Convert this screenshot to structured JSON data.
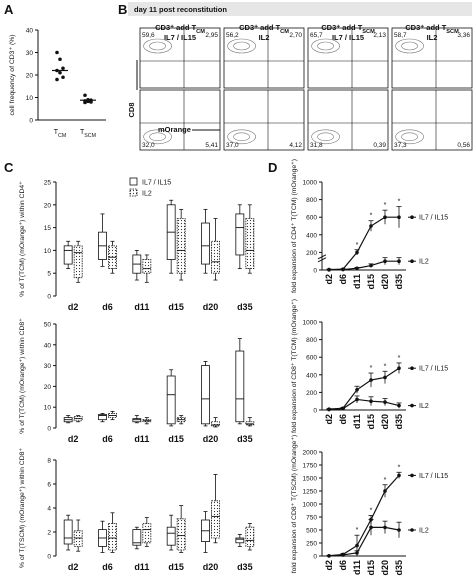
{
  "panels": {
    "A": "A",
    "B": "B",
    "C": "C",
    "D": "D"
  },
  "chart_data": [
    {
      "id": "A",
      "type": "scatter",
      "ylabel": "cell frequency of CD3⁺ (%)",
      "ylim": [
        0,
        40
      ],
      "yticks": [
        0,
        10,
        20,
        30,
        40
      ],
      "categories": [
        "T_CM",
        "T_SCM"
      ],
      "category_labels": [
        {
          "main": "T",
          "sub": "CM"
        },
        {
          "main": "T",
          "sub": "SCM"
        }
      ],
      "points": [
        {
          "cat": 0,
          "values": [
            30,
            27,
            23,
            22,
            21,
            19,
            18
          ]
        },
        {
          "cat": 1,
          "values": [
            11,
            9,
            8.8,
            8.5,
            8.3,
            8,
            7.8
          ]
        }
      ],
      "means": [
        22,
        8.8
      ]
    },
    {
      "id": "B",
      "type": "facs_grid",
      "title": "day 11 post reconstitution",
      "xlabel": "mOrange",
      "ylabel": "CD8",
      "columns": [
        {
          "line1": "CD3⁺ add T",
          "sub": "CM",
          "line2": "IL7 / IL15",
          "quadrants": {
            "ul": "59,6",
            "ur": "2,95",
            "ll": "32,0",
            "lr": "5,41"
          }
        },
        {
          "line1": "CD3⁺ add T",
          "sub": "CM",
          "line2": "IL2",
          "quadrants": {
            "ul": "56,2",
            "ur": "2,70",
            "ll": "37,0",
            "lr": "4,12"
          }
        },
        {
          "line1": "CD3⁺ add T",
          "sub": "SCM",
          "line2": "IL7 / IL15",
          "quadrants": {
            "ul": "65,7",
            "ur": "2,13",
            "ll": "31,8",
            "lr": "0,39"
          }
        },
        {
          "line1": "CD3⁺ add T",
          "sub": "SCM",
          "line2": "IL2",
          "quadrants": {
            "ul": "58,7",
            "ur": "3,36",
            "ll": "37,3",
            "lr": "0,56"
          }
        }
      ]
    },
    {
      "id": "C1",
      "type": "box",
      "ylabel": "% of T(TCM) (mOrange⁺) within CD4⁺",
      "ylim": [
        0,
        25
      ],
      "yticks": [
        0,
        5,
        10,
        15,
        20,
        25
      ],
      "categories": [
        "d2",
        "d6",
        "d11",
        "d15",
        "d20",
        "d35"
      ],
      "legend": [
        "IL7 / IL15",
        "IL2"
      ],
      "series": [
        {
          "name": "IL7 / IL15",
          "boxes": [
            [
              6,
              7,
              10,
              11,
              12
            ],
            [
              6.5,
              8,
              11,
              14,
              18
            ],
            [
              3.5,
              5,
              7,
              9,
              10
            ],
            [
              5,
              8,
              14,
              20,
              21
            ],
            [
              5,
              7,
              11,
              16,
              19
            ],
            [
              6,
              9,
              15,
              18,
              20
            ]
          ]
        },
        {
          "name": "IL2",
          "boxes": [
            [
              3,
              4,
              9.5,
              11,
              12
            ],
            [
              5,
              6,
              8.5,
              11,
              12
            ],
            [
              3,
              5,
              6,
              8,
              9
            ],
            [
              3.5,
              5,
              10,
              17,
              19
            ],
            [
              3.5,
              5,
              7.5,
              12,
              17
            ],
            [
              5,
              6,
              10,
              17,
              20
            ]
          ]
        }
      ]
    },
    {
      "id": "C2",
      "type": "box",
      "ylabel": "% of T(TCM) (mOrange⁺) within CD8⁺",
      "ylim": [
        0,
        50
      ],
      "yticks": [
        0,
        10,
        20,
        30,
        40,
        50
      ],
      "categories": [
        "d2",
        "d6",
        "d11",
        "d15",
        "d20",
        "d35"
      ],
      "series": [
        {
          "name": "IL7 / IL15",
          "boxes": [
            [
              2.5,
              3,
              4,
              5,
              6
            ],
            [
              3,
              4,
              6,
              6.5,
              7
            ],
            [
              2.5,
              3,
              4,
              4.5,
              6
            ],
            [
              1,
              2,
              16,
              25,
              28
            ],
            [
              1,
              2,
              14,
              30,
              32
            ],
            [
              2,
              3,
              14,
              37,
              43
            ]
          ]
        },
        {
          "name": "IL2",
          "boxes": [
            [
              3,
              3.5,
              4.5,
              5.5,
              6
            ],
            [
              4,
              5,
              6,
              7,
              8
            ],
            [
              2,
              3,
              3.5,
              4,
              5
            ],
            [
              2,
              3,
              4,
              5,
              6
            ],
            [
              0.5,
              1,
              1.5,
              3,
              5
            ],
            [
              1,
              1.5,
              2,
              3,
              5
            ]
          ]
        }
      ]
    },
    {
      "id": "C3",
      "type": "box",
      "ylabel": "% of T(TSCM) (mOrange⁺) within CD8⁺",
      "ylim": [
        0,
        8
      ],
      "yticks": [
        0,
        2,
        4,
        6,
        8
      ],
      "categories": [
        "d2",
        "d6",
        "d11",
        "d15",
        "d20",
        "d35"
      ],
      "series": [
        {
          "name": "IL7 / IL15",
          "boxes": [
            [
              0.5,
              1,
              1.5,
              3,
              3.4
            ],
            [
              0.3,
              0.8,
              1.5,
              2.2,
              2.9
            ],
            [
              0.6,
              0.9,
              1.1,
              2.2,
              2.4
            ],
            [
              0.5,
              0.9,
              1.9,
              2.4,
              3.4
            ],
            [
              0.3,
              1.2,
              2.1,
              3.0,
              3.7
            ],
            [
              0.8,
              1.1,
              1.4,
              1.5,
              1.8
            ]
          ]
        },
        {
          "name": "IL2",
          "boxes": [
            [
              0.4,
              0.8,
              1.5,
              2.1,
              3
            ],
            [
              0.3,
              0.5,
              1.5,
              2.7,
              3.6
            ],
            [
              0.8,
              1.1,
              2.2,
              2.7,
              3.2
            ],
            [
              0.3,
              0.5,
              1.7,
              3.1,
              4.2
            ],
            [
              1.1,
              1.5,
              3.3,
              4.6,
              6.8
            ],
            [
              0.5,
              0.8,
              1.3,
              2.4,
              2.7
            ]
          ]
        }
      ]
    },
    {
      "id": "D1",
      "type": "line",
      "ylabel": "fold expansion of CD4⁺ T(TCM) (mOrange⁺)",
      "ylim": [
        0,
        1000
      ],
      "yticks": [
        0,
        200,
        400,
        600,
        800,
        1000
      ],
      "axis_break": true,
      "categories": [
        "d2",
        "d6",
        "d11",
        "d15",
        "d20",
        "d35"
      ],
      "significance": [
        "",
        "",
        "*",
        "*",
        "*",
        "*"
      ],
      "series": [
        {
          "name": "IL7 / IL15",
          "values": [
            5,
            10,
            200,
            500,
            600,
            600
          ],
          "errors": [
            5,
            5,
            30,
            60,
            80,
            120
          ]
        },
        {
          "name": "IL2",
          "values": [
            2,
            5,
            20,
            50,
            100,
            100
          ],
          "errors": [
            2,
            3,
            10,
            20,
            40,
            40
          ]
        }
      ]
    },
    {
      "id": "D2",
      "type": "line",
      "ylabel": "fold expansion of CD8⁺ T(TCM) (mOrange⁺)",
      "ylim": [
        0,
        1000
      ],
      "yticks": [
        0,
        200,
        400,
        600,
        800,
        1000
      ],
      "categories": [
        "d2",
        "d6",
        "d11",
        "d15",
        "d20",
        "d35"
      ],
      "significance": [
        "",
        "",
        "",
        "*",
        "*",
        "*"
      ],
      "series": [
        {
          "name": "IL7 / IL15",
          "values": [
            10,
            20,
            230,
            340,
            370,
            475
          ],
          "errors": [
            5,
            10,
            40,
            80,
            70,
            60
          ]
        },
        {
          "name": "IL2",
          "values": [
            5,
            15,
            120,
            100,
            90,
            50
          ],
          "errors": [
            3,
            10,
            40,
            50,
            40,
            30
          ]
        }
      ]
    },
    {
      "id": "D3",
      "type": "line",
      "ylabel": "fold expansion of CD8⁺ T(TSCM) (mOrange⁺)",
      "ylim": [
        0,
        2000
      ],
      "yticks": [
        0,
        250,
        500,
        750,
        1000,
        1250,
        1500,
        1750,
        2000
      ],
      "categories": [
        "d2",
        "d6",
        "d11",
        "d15",
        "d20",
        "d35"
      ],
      "significance": [
        "",
        "",
        "*",
        "*",
        "*",
        "*"
      ],
      "series": [
        {
          "name": "IL7 / IL15",
          "values": [
            5,
            30,
            200,
            700,
            1250,
            1550
          ],
          "errors": [
            5,
            20,
            200,
            80,
            120,
            60
          ]
        },
        {
          "name": "IL2",
          "values": [
            2,
            20,
            60,
            550,
            550,
            500
          ],
          "errors": [
            2,
            10,
            40,
            150,
            120,
            150
          ]
        }
      ]
    }
  ]
}
